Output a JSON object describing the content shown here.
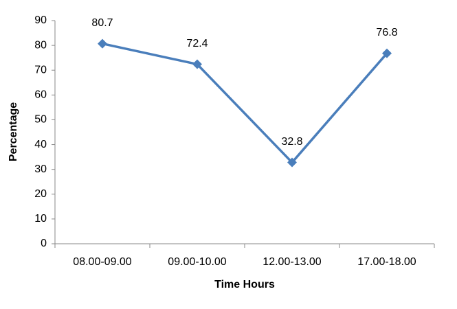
{
  "chart_data": {
    "type": "line",
    "x_label": "Time Hours",
    "y_label": "Percentage",
    "categories": [
      "08.00-09.00",
      "09.00-10.00",
      "12.00-13.00",
      "17.00-18.00"
    ],
    "series": [
      {
        "color": "#4a7ebb",
        "values": [
          80.7,
          72.4,
          32.8,
          76.8
        ]
      }
    ],
    "ylim": [
      0,
      90
    ],
    "yticks": [
      0,
      10,
      20,
      30,
      40,
      50,
      60,
      70,
      80,
      90
    ],
    "grid": false,
    "data_labels": true,
    "marker": "diamond"
  }
}
